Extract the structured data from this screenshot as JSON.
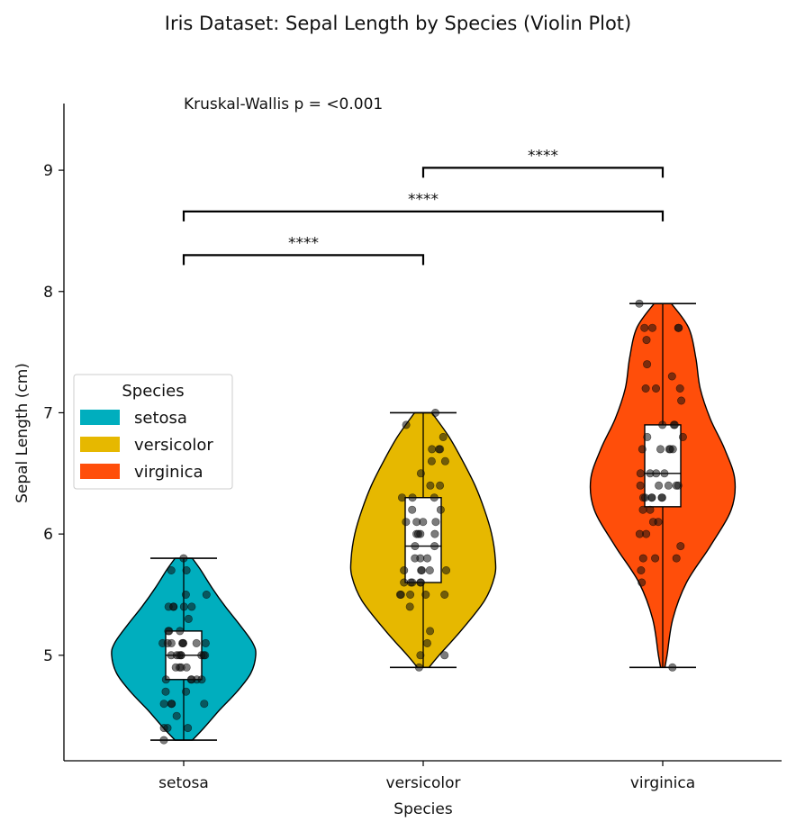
{
  "chart_data": {
    "type": "violin",
    "title": "Iris Dataset: Sepal Length by Species (Violin Plot)",
    "xlabel": "Species",
    "ylabel": "Sepal Length (cm)",
    "categories": [
      "setosa",
      "versicolor",
      "virginica"
    ],
    "colors": {
      "setosa": "#00aebe",
      "versicolor": "#e6b800",
      "virginica": "#ff4e0a"
    },
    "ylim": [
      4.13,
      9.55
    ],
    "yticks": [
      5,
      6,
      7,
      8,
      9
    ],
    "annotation": "Kruskal-Wallis p = <0.001",
    "legend": {
      "title": "Species",
      "placement": "center-left",
      "entries": [
        "setosa",
        "versicolor",
        "virginica"
      ]
    },
    "series": [
      {
        "name": "setosa",
        "min": 4.3,
        "max": 5.8,
        "q1": 4.8,
        "median": 5.0,
        "q3": 5.2,
        "density": [
          [
            4.3,
            0.12
          ],
          [
            4.4,
            0.28
          ],
          [
            4.55,
            0.5
          ],
          [
            4.7,
            0.74
          ],
          [
            4.85,
            0.93
          ],
          [
            5.0,
            1.0
          ],
          [
            5.1,
            0.96
          ],
          [
            5.25,
            0.78
          ],
          [
            5.4,
            0.58
          ],
          [
            5.55,
            0.4
          ],
          [
            5.7,
            0.24
          ],
          [
            5.8,
            0.12
          ]
        ],
        "points": [
          5.1,
          4.9,
          4.7,
          4.6,
          5.0,
          5.4,
          4.6,
          5.0,
          4.4,
          4.9,
          5.4,
          4.8,
          4.8,
          4.3,
          5.8,
          5.7,
          5.4,
          5.1,
          5.7,
          5.1,
          5.4,
          5.1,
          4.6,
          5.1,
          4.8,
          5.0,
          5.0,
          5.2,
          5.2,
          4.7,
          4.8,
          5.4,
          5.2,
          5.5,
          4.9,
          5.0,
          5.5,
          4.9,
          4.4,
          5.1,
          5.0,
          4.5,
          4.4,
          5.0,
          5.1,
          4.8,
          5.1,
          4.6,
          5.3,
          5.0
        ]
      },
      {
        "name": "versicolor",
        "min": 4.9,
        "max": 7.0,
        "q1": 5.6,
        "median": 5.9,
        "q3": 6.3,
        "density": [
          [
            4.9,
            0.08
          ],
          [
            5.0,
            0.22
          ],
          [
            5.2,
            0.52
          ],
          [
            5.45,
            0.85
          ],
          [
            5.65,
            0.99
          ],
          [
            5.8,
            1.0
          ],
          [
            6.0,
            0.95
          ],
          [
            6.2,
            0.85
          ],
          [
            6.4,
            0.72
          ],
          [
            6.6,
            0.55
          ],
          [
            6.8,
            0.36
          ],
          [
            7.0,
            0.12
          ]
        ],
        "points": [
          7.0,
          6.4,
          6.9,
          5.5,
          6.5,
          5.7,
          6.3,
          4.9,
          6.6,
          5.2,
          5.0,
          5.9,
          6.0,
          6.1,
          5.6,
          6.7,
          5.6,
          5.8,
          6.2,
          5.6,
          5.9,
          6.1,
          6.3,
          6.1,
          6.4,
          6.6,
          6.8,
          6.7,
          6.0,
          5.7,
          5.5,
          5.5,
          5.8,
          6.0,
          5.4,
          6.0,
          6.7,
          6.3,
          5.6,
          5.5,
          5.5,
          6.1,
          5.8,
          5.0,
          5.6,
          5.7,
          5.7,
          6.2,
          5.1,
          5.7
        ]
      },
      {
        "name": "virginica",
        "min": 4.9,
        "max": 7.9,
        "q1": 6.225,
        "median": 6.5,
        "q3": 6.9,
        "density": [
          [
            4.9,
            0.03
          ],
          [
            5.0,
            0.06
          ],
          [
            5.3,
            0.14
          ],
          [
            5.6,
            0.33
          ],
          [
            5.9,
            0.66
          ],
          [
            6.2,
            0.95
          ],
          [
            6.45,
            1.0
          ],
          [
            6.7,
            0.86
          ],
          [
            6.95,
            0.66
          ],
          [
            7.2,
            0.52
          ],
          [
            7.45,
            0.46
          ],
          [
            7.7,
            0.36
          ],
          [
            7.9,
            0.12
          ]
        ],
        "points": [
          6.3,
          5.8,
          7.1,
          6.3,
          6.5,
          7.6,
          4.9,
          7.3,
          6.7,
          7.2,
          6.5,
          6.4,
          6.8,
          5.7,
          5.8,
          6.4,
          6.5,
          7.7,
          7.7,
          6.0,
          6.9,
          5.6,
          7.7,
          6.3,
          6.7,
          7.2,
          6.2,
          6.1,
          6.4,
          7.2,
          7.4,
          7.9,
          6.4,
          6.3,
          6.1,
          7.7,
          6.3,
          6.4,
          6.0,
          6.9,
          6.7,
          6.9,
          5.8,
          6.8,
          6.7,
          6.7,
          6.3,
          6.5,
          6.2,
          5.9
        ]
      }
    ],
    "comparisons": [
      {
        "from": "setosa",
        "to": "versicolor",
        "label": "****",
        "level": 8.3
      },
      {
        "from": "setosa",
        "to": "virginica",
        "label": "****",
        "level": 8.66
      },
      {
        "from": "versicolor",
        "to": "virginica",
        "label": "****",
        "level": 9.02
      }
    ]
  }
}
